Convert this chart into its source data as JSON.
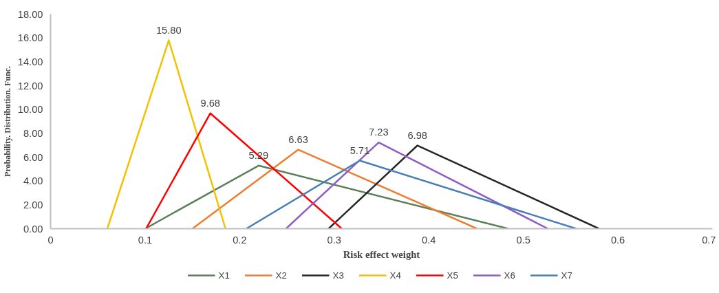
{
  "chart_data": {
    "type": "line",
    "xlabel": "Risk effect weight",
    "ylabel": "Probability. Distribution. Func.",
    "xlim": [
      0,
      0.7
    ],
    "xticks": [
      0,
      0.1,
      0.2,
      0.3,
      0.4,
      0.5,
      0.6,
      0.7
    ],
    "ylim": [
      0,
      18
    ],
    "yticks": [
      {
        "value": 0,
        "label": "0.00"
      },
      {
        "value": 2,
        "label": "2.00"
      },
      {
        "value": 4,
        "label": "4.00"
      },
      {
        "value": 6,
        "label": "6.00"
      },
      {
        "value": 8,
        "label": "8.00"
      },
      {
        "value": 10,
        "label": "10.00"
      },
      {
        "value": 12,
        "label": "12.00"
      },
      {
        "value": 14,
        "label": "14.00"
      },
      {
        "value": 16,
        "label": "16.00"
      },
      {
        "value": 18,
        "label": "18.00"
      }
    ],
    "grid": false,
    "legend": "bottom",
    "marker": "none",
    "line_style": "solid",
    "series": [
      {
        "name": "X1",
        "color": "#5b7f5b",
        "x": [
          0.1,
          0.22,
          0.484
        ],
        "values": [
          0,
          5.29,
          0
        ],
        "value_labels": [
          null,
          "5.29",
          null
        ]
      },
      {
        "name": "X2",
        "color": "#ed7d31",
        "x": [
          0.15,
          0.262,
          0.451
        ],
        "values": [
          0,
          6.63,
          0
        ],
        "value_labels": [
          null,
          "6.63",
          null
        ]
      },
      {
        "name": "X3",
        "color": "#262626",
        "x": [
          0.294,
          0.388,
          0.58
        ],
        "values": [
          0,
          6.98,
          0
        ],
        "value_labels": [
          null,
          "6.98",
          null
        ]
      },
      {
        "name": "X4",
        "color": "#f2c200",
        "x": [
          0.06,
          0.125,
          0.185
        ],
        "values": [
          0,
          15.8,
          0
        ],
        "value_labels": [
          null,
          "15.80",
          null
        ]
      },
      {
        "name": "X5",
        "color": "#ff0000",
        "x": [
          0.101,
          0.169,
          0.308
        ],
        "values": [
          0,
          9.68,
          0
        ],
        "value_labels": [
          null,
          "9.68",
          null
        ]
      },
      {
        "name": "X6",
        "color": "#8e5cc8",
        "x": [
          0.249,
          0.347,
          0.526
        ],
        "values": [
          0,
          7.23,
          0
        ],
        "value_labels": [
          null,
          "7.23",
          null
        ]
      },
      {
        "name": "X7",
        "color": "#4a7fb5",
        "x": [
          0.207,
          0.327,
          0.556
        ],
        "values": [
          0,
          5.71,
          0
        ],
        "value_labels": [
          null,
          "5.71",
          null
        ]
      }
    ]
  }
}
